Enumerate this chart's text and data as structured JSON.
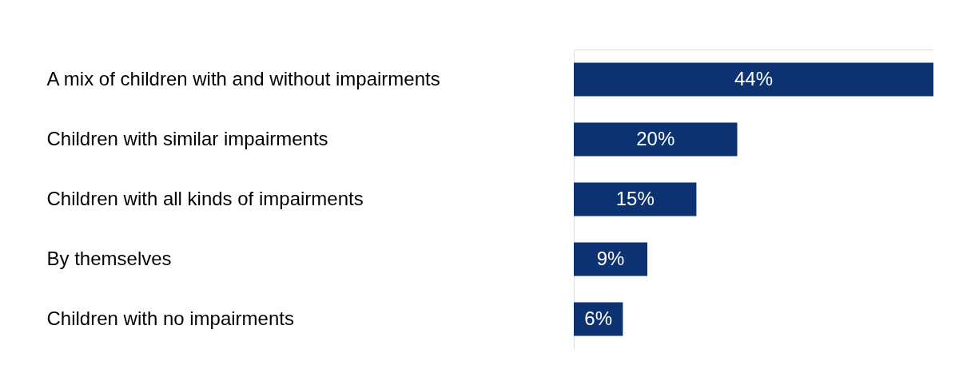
{
  "chart_data": {
    "type": "bar",
    "orientation": "horizontal",
    "categories": [
      "A mix of children with and without impairments",
      "Children with similar impairments",
      "Children with all kinds of impairments",
      "By themselves",
      "Children with no impairments"
    ],
    "values": [
      44,
      20,
      15,
      9,
      6
    ],
    "value_labels": [
      "44%",
      "20%",
      "15%",
      "9%",
      "6%"
    ],
    "color": "#0d3272"
  }
}
